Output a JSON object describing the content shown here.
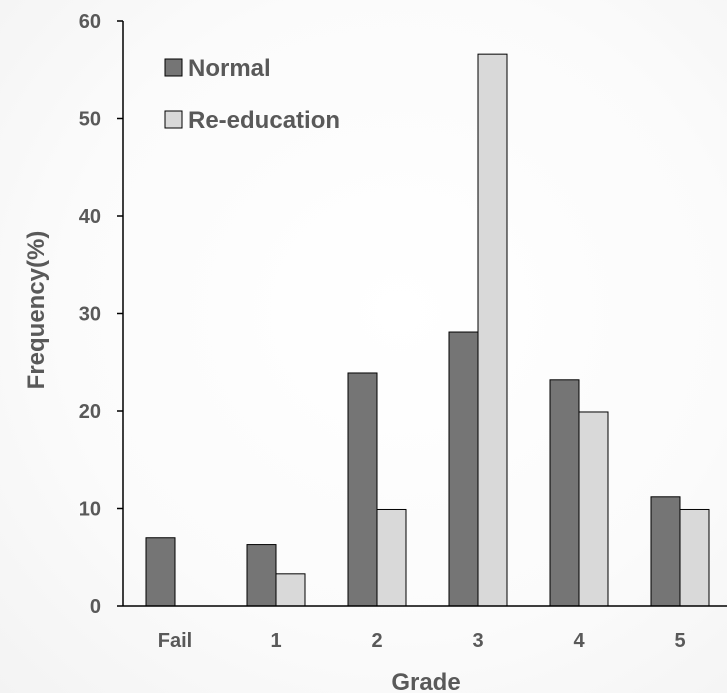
{
  "chart_data": {
    "type": "bar",
    "categories": [
      "Fail",
      "1",
      "2",
      "3",
      "4",
      "5"
    ],
    "series": [
      {
        "name": "Normal",
        "values": [
          7.0,
          6.3,
          23.9,
          28.1,
          23.2,
          11.2
        ],
        "color": "#757575"
      },
      {
        "name": "Re-education",
        "values": [
          0,
          3.3,
          9.9,
          56.6,
          19.9,
          9.9
        ],
        "color": "#d9d9d9"
      }
    ],
    "xlabel": "Grade",
    "ylabel": "Frequency(%)",
    "ylim": [
      0,
      60
    ],
    "yticks": [
      0,
      10,
      20,
      30,
      40,
      50,
      60
    ],
    "grid": false,
    "legend": "top-left"
  }
}
